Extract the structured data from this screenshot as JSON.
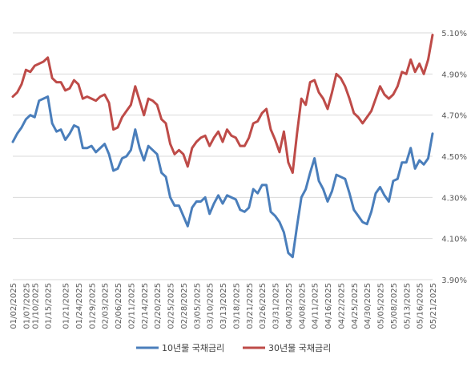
{
  "chart_data": {
    "type": "line",
    "ylim": [
      3.9,
      5.1
    ],
    "yticks": [
      "3.90%",
      "4.10%",
      "4.30%",
      "4.50%",
      "4.70%",
      "4.90%",
      "5.10%"
    ],
    "ytick_values": [
      3.9,
      4.1,
      4.3,
      4.5,
      4.7,
      4.9,
      5.1
    ],
    "grid": true,
    "legend_position": "bottom",
    "x_tick_labels": [
      "01/02/2025",
      "01/07/2025",
      "01/10/2025",
      "01/15/2025",
      "01/21/2025",
      "01/24/2025",
      "01/29/2025",
      "02/03/2025",
      "02/06/2025",
      "02/11/2025",
      "02/14/2025",
      "02/20/2025",
      "02/25/2025",
      "02/28/2025",
      "03/05/2025",
      "03/10/2025",
      "03/13/2025",
      "03/18/2025",
      "03/21/2025",
      "03/26/2025",
      "03/31/2025",
      "04/03/2025",
      "04/08/2025",
      "04/11/2025",
      "04/16/2025",
      "04/22/2025",
      "04/25/2025",
      "04/30/2025",
      "05/05/2025",
      "05/08/2025",
      "05/13/2025",
      "05/16/2025",
      "05/21/2025"
    ],
    "x_tick_indices": [
      0,
      3,
      5,
      8,
      12,
      15,
      18,
      21,
      24,
      27,
      30,
      33,
      36,
      39,
      42,
      45,
      48,
      51,
      54,
      57,
      60,
      63,
      66,
      69,
      72,
      75,
      78,
      81,
      84,
      87,
      90,
      93,
      96
    ],
    "n_points": 97,
    "series": [
      {
        "name": "10년물 국채금리",
        "color": "#4a7ebb",
        "values": [
          4.57,
          4.61,
          4.64,
          4.68,
          4.7,
          4.69,
          4.77,
          4.78,
          4.79,
          4.66,
          4.62,
          4.63,
          4.58,
          4.61,
          4.65,
          4.64,
          4.54,
          4.54,
          4.55,
          4.52,
          4.54,
          4.56,
          4.51,
          4.43,
          4.44,
          4.49,
          4.5,
          4.53,
          4.63,
          4.54,
          4.48,
          4.55,
          4.53,
          4.51,
          4.42,
          4.4,
          4.3,
          4.26,
          4.26,
          4.21,
          4.16,
          4.25,
          4.28,
          4.28,
          4.3,
          4.22,
          4.27,
          4.31,
          4.27,
          4.31,
          4.3,
          4.29,
          4.24,
          4.23,
          4.25,
          4.34,
          4.32,
          4.36,
          4.36,
          4.23,
          4.21,
          4.18,
          4.13,
          4.03,
          4.01,
          4.16,
          4.3,
          4.34,
          4.42,
          4.49,
          4.38,
          4.34,
          4.28,
          4.33,
          4.41,
          4.4,
          4.39,
          4.32,
          4.24,
          4.21,
          4.18,
          4.17,
          4.23,
          4.32,
          4.35,
          4.31,
          4.28,
          4.38,
          4.39,
          4.47,
          4.47,
          4.54,
          4.44,
          4.48,
          4.46,
          4.49,
          4.61
        ]
      },
      {
        "name": "30년물 국채금리",
        "color": "#be4b48",
        "values": [
          4.79,
          4.81,
          4.85,
          4.92,
          4.91,
          4.94,
          4.95,
          4.96,
          4.98,
          4.88,
          4.86,
          4.86,
          4.82,
          4.83,
          4.87,
          4.85,
          4.78,
          4.79,
          4.78,
          4.77,
          4.79,
          4.8,
          4.76,
          4.63,
          4.64,
          4.69,
          4.72,
          4.75,
          4.84,
          4.77,
          4.7,
          4.78,
          4.77,
          4.75,
          4.68,
          4.66,
          4.56,
          4.51,
          4.53,
          4.51,
          4.45,
          4.54,
          4.57,
          4.59,
          4.6,
          4.55,
          4.59,
          4.62,
          4.57,
          4.63,
          4.6,
          4.59,
          4.55,
          4.55,
          4.59,
          4.66,
          4.67,
          4.71,
          4.73,
          4.63,
          4.58,
          4.52,
          4.62,
          4.47,
          4.42,
          4.61,
          4.78,
          4.75,
          4.86,
          4.87,
          4.81,
          4.78,
          4.73,
          4.81,
          4.9,
          4.88,
          4.84,
          4.78,
          4.71,
          4.69,
          4.66,
          4.69,
          4.72,
          4.78,
          4.84,
          4.8,
          4.78,
          4.8,
          4.84,
          4.91,
          4.9,
          4.97,
          4.91,
          4.95,
          4.9,
          4.97,
          5.09
        ]
      }
    ]
  }
}
